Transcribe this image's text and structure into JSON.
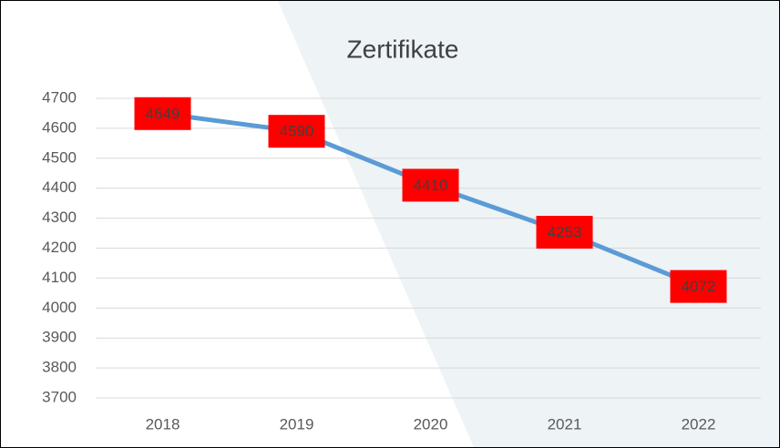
{
  "chart_data": {
    "type": "line",
    "title": "Zertifikate",
    "categories": [
      "2018",
      "2019",
      "2020",
      "2021",
      "2022"
    ],
    "values": [
      4649,
      4590,
      4410,
      4253,
      4072
    ],
    "color": "#5b9bd5",
    "label_color": "#ff0000",
    "ylim": [
      3700,
      4700
    ],
    "yticks": [
      3700,
      3800,
      3900,
      4000,
      4100,
      4200,
      4300,
      4400,
      4500,
      4600,
      4700
    ],
    "grid": true
  }
}
